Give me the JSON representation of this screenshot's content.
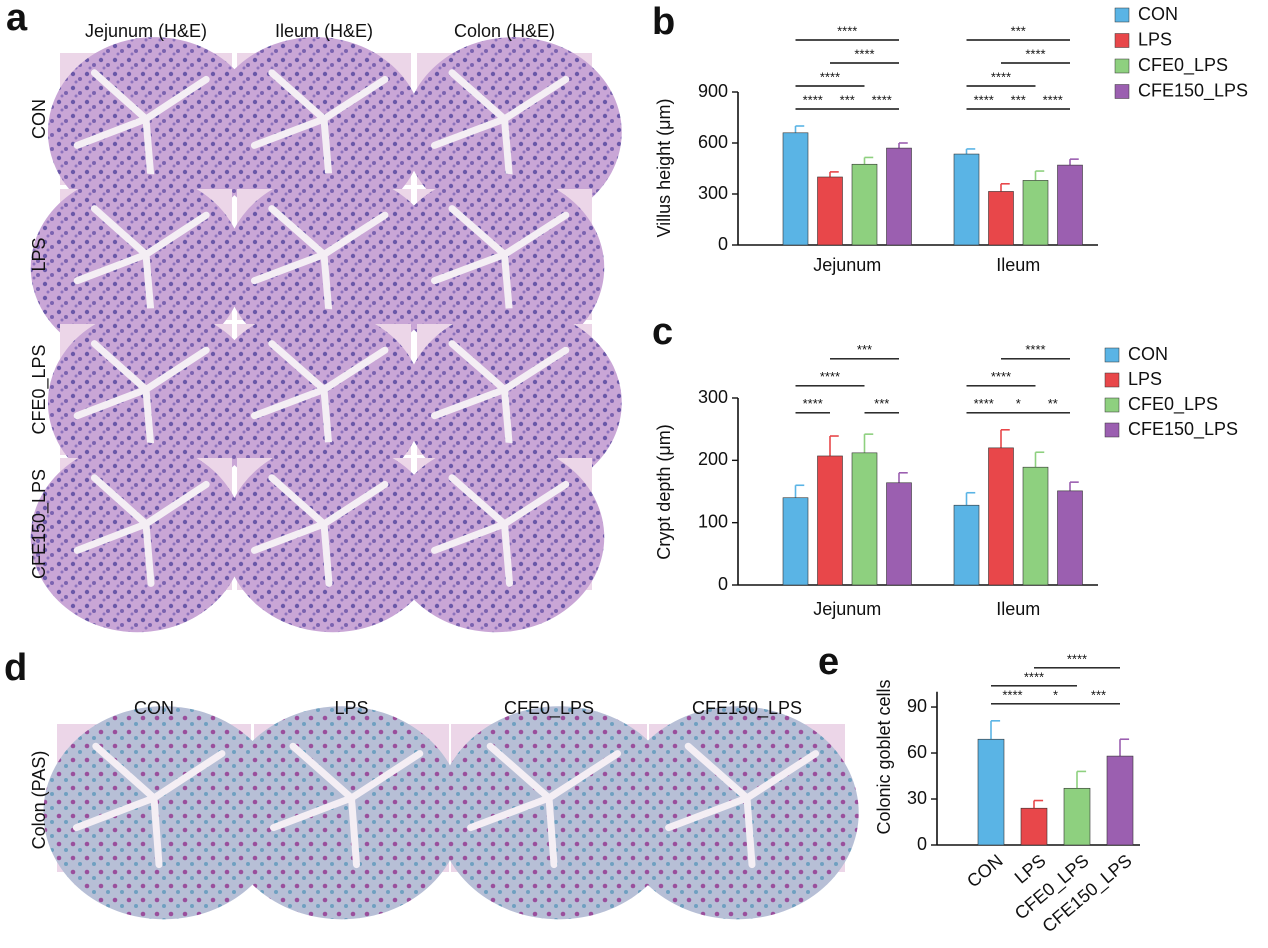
{
  "figure": {
    "panel_labels": [
      "a",
      "b",
      "c",
      "d",
      "e"
    ],
    "panel_a": {
      "column_titles": [
        "Jejunum (H&E)",
        "Ileum (H&E)",
        "Colon (H&E)"
      ],
      "row_labels": [
        "CON",
        "LPS",
        "CFE0_LPS",
        "CFE150_LPS"
      ]
    },
    "panel_d": {
      "column_titles": [
        "CON",
        "LPS",
        "CFE0_LPS",
        "CFE150_LPS"
      ],
      "row_label": "Colon (PAS)"
    }
  },
  "chart_data": [
    {
      "type": "bar",
      "y_label": "Villus height (μm)",
      "categories": [
        "Jejunum",
        "Ileum"
      ],
      "series": [
        {
          "name": "CON",
          "color": "#5ab4e5",
          "values": [
            660,
            535
          ],
          "errors": [
            40,
            30
          ]
        },
        {
          "name": "LPS",
          "color": "#e8474a",
          "values": [
            400,
            315
          ],
          "errors": [
            30,
            45
          ]
        },
        {
          "name": "CFE0_LPS",
          "color": "#8ed07f",
          "values": [
            475,
            380
          ],
          "errors": [
            40,
            55
          ]
        },
        {
          "name": "CFE150_LPS",
          "color": "#9b5fb0",
          "values": [
            570,
            470
          ],
          "errors": [
            30,
            35
          ]
        }
      ],
      "ylim": [
        0,
        900
      ],
      "yticks": [
        0,
        300,
        600,
        900
      ],
      "brackets": [
        [
          {
            "from": 0,
            "to": 1,
            "label": "****"
          },
          {
            "from": 1,
            "to": 2,
            "label": "***"
          },
          {
            "from": 2,
            "to": 3,
            "label": "****"
          },
          {
            "from": 0,
            "to": 2,
            "label": "****"
          },
          {
            "from": 1,
            "to": 3,
            "label": "****"
          },
          {
            "from": 0,
            "to": 3,
            "label": "****"
          }
        ],
        [
          {
            "from": 0,
            "to": 1,
            "label": "****"
          },
          {
            "from": 1,
            "to": 2,
            "label": "***"
          },
          {
            "from": 2,
            "to": 3,
            "label": "****"
          },
          {
            "from": 0,
            "to": 2,
            "label": "****"
          },
          {
            "from": 1,
            "to": 3,
            "label": "****"
          },
          {
            "from": 0,
            "to": 3,
            "label": "***"
          }
        ]
      ]
    },
    {
      "type": "bar",
      "y_label": "Crypt depth (μm)",
      "categories": [
        "Jejunum",
        "Ileum"
      ],
      "series": [
        {
          "name": "CON",
          "color": "#5ab4e5",
          "values": [
            140,
            128
          ],
          "errors": [
            20,
            20
          ]
        },
        {
          "name": "LPS",
          "color": "#e8474a",
          "values": [
            207,
            220
          ],
          "errors": [
            32,
            29
          ]
        },
        {
          "name": "CFE0_LPS",
          "color": "#8ed07f",
          "values": [
            212,
            189
          ],
          "errors": [
            30,
            24
          ]
        },
        {
          "name": "CFE150_LPS",
          "color": "#9b5fb0",
          "values": [
            164,
            151
          ],
          "errors": [
            16,
            14
          ]
        }
      ],
      "ylim": [
        0,
        300
      ],
      "yticks": [
        0,
        100,
        200,
        300
      ],
      "brackets": [
        [
          {
            "from": 0,
            "to": 1,
            "label": "****"
          },
          {
            "from": 2,
            "to": 3,
            "label": "***"
          },
          {
            "from": 0,
            "to": 2,
            "label": "****"
          },
          {
            "from": 1,
            "to": 3,
            "label": "***"
          }
        ],
        [
          {
            "from": 0,
            "to": 1,
            "label": "****"
          },
          {
            "from": 1,
            "to": 2,
            "label": "*"
          },
          {
            "from": 2,
            "to": 3,
            "label": "**"
          },
          {
            "from": 0,
            "to": 2,
            "label": "****"
          },
          {
            "from": 1,
            "to": 3,
            "label": "****"
          }
        ]
      ]
    },
    {
      "type": "bar",
      "y_label": "Colonic goblet cells",
      "categories": [
        "CON",
        "LPS",
        "CFE0_LPS",
        "CFE150_LPS"
      ],
      "values": [
        69,
        24,
        37,
        58
      ],
      "errors": [
        12,
        5,
        11,
        11
      ],
      "colors": [
        "#5ab4e5",
        "#e8474a",
        "#8ed07f",
        "#9b5fb0"
      ],
      "ylim": [
        0,
        100
      ],
      "yticks": [
        0,
        30,
        60,
        90
      ],
      "brackets": [
        [
          {
            "from": 0,
            "to": 1,
            "label": "****"
          },
          {
            "from": 1,
            "to": 2,
            "label": "*"
          },
          {
            "from": 2,
            "to": 3,
            "label": "***"
          },
          {
            "from": 0,
            "to": 2,
            "label": "****"
          },
          {
            "from": 1,
            "to": 3,
            "label": "****"
          }
        ]
      ]
    }
  ]
}
